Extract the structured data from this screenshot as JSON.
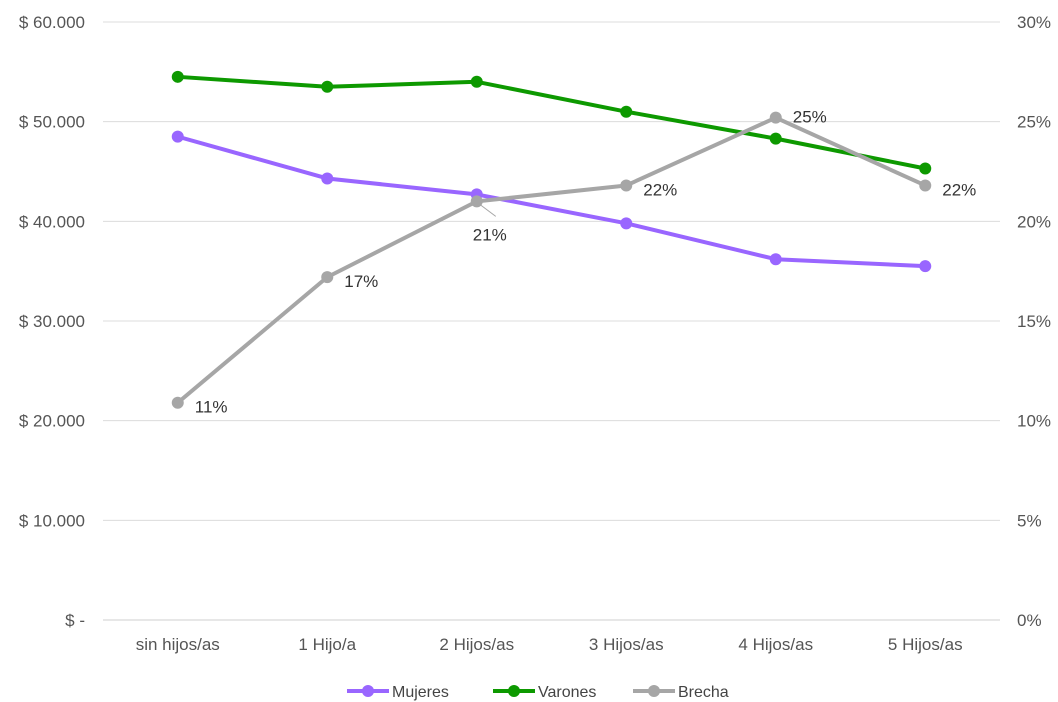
{
  "chart_data": {
    "type": "line",
    "categories": [
      "sin hijos/as",
      "1 Hijo/a",
      "2 Hijos/as",
      "3 Hijos/as",
      "4 Hijos/as",
      "5 Hijos/as"
    ],
    "y_left": {
      "range": [
        0,
        60000
      ],
      "tick_values": [
        0,
        10000,
        20000,
        30000,
        40000,
        50000,
        60000
      ],
      "tick_labels": [
        "$ -",
        "$ 10.000",
        "$ 20.000",
        "$ 30.000",
        "$ 40.000",
        "$ 50.000",
        "$ 60.000"
      ]
    },
    "y_right": {
      "range": [
        0,
        30
      ],
      "tick_values": [
        0,
        5,
        10,
        15,
        20,
        25,
        30
      ],
      "tick_labels": [
        "0%",
        "5%",
        "10%",
        "15%",
        "20%",
        "25%",
        "30%"
      ]
    },
    "series": [
      {
        "name": "Mujeres",
        "axis": "left",
        "color": "#9966ff",
        "values": [
          48500,
          44300,
          42700,
          39800,
          36200,
          35500
        ]
      },
      {
        "name": "Varones",
        "axis": "left",
        "color": "#0d9900",
        "values": [
          54500,
          53500,
          54000,
          51000,
          48300,
          45300
        ]
      },
      {
        "name": "Brecha",
        "axis": "right",
        "color": "#a6a6a6",
        "values": [
          10.9,
          17.2,
          21.0,
          21.8,
          25.2,
          21.8
        ],
        "data_labels": [
          "11%",
          "17%",
          "21%",
          "22%",
          "25%",
          "22%"
        ]
      }
    ],
    "grid": true,
    "legend_position": "bottom",
    "title": "",
    "xlabel": "",
    "ylabel": ""
  }
}
